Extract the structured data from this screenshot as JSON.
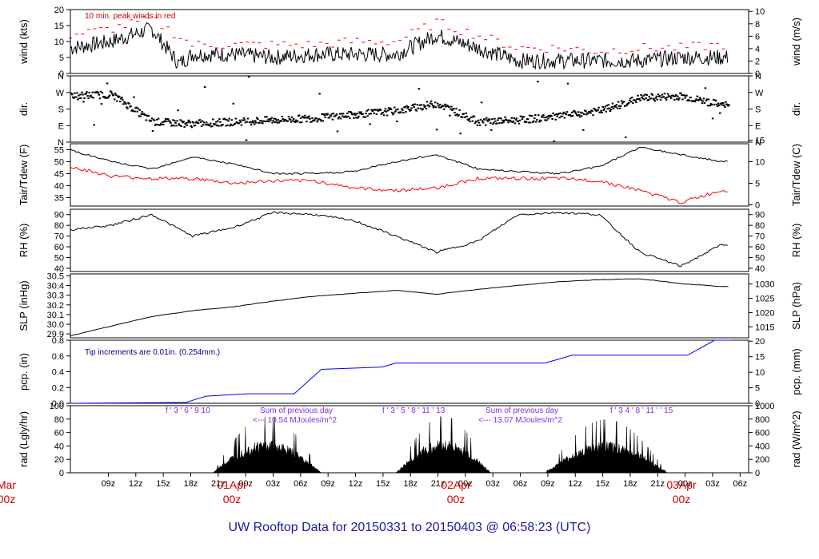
{
  "title": "UW Rooftop Data for 20150331  to  20150403 @ 06:58:23  (UTC)",
  "colors": {
    "axis": "#000000",
    "temp": "#000000",
    "dewpoint": "#ff0000",
    "wind_peak": "#ff0000",
    "precip": "#0000ff",
    "title": "#1a1aa6",
    "date": "#cc0000",
    "note_red": "#cc0000",
    "note_blue": "#00008b",
    "note_purple": "#8a2be2"
  },
  "time_ticks": [
    "09z",
    "12z",
    "15z",
    "18z",
    "21z",
    "00z",
    "03z",
    "06z",
    "09z",
    "12z",
    "15z",
    "18z",
    "21z",
    "00z",
    "03z",
    "06z",
    "09z",
    "12z",
    "15z",
    "18z",
    "21z",
    "00z",
    "03z",
    "06z"
  ],
  "date_labels": [
    {
      "day": "Mar",
      "hour": "00z"
    },
    {
      "day": "01Apr",
      "hour": "00z"
    },
    {
      "day": "02Apr",
      "hour": "00z"
    },
    {
      "day": "03Apr",
      "hour": "00z"
    }
  ],
  "panels": {
    "wind": {
      "left_label": "wind (kts)",
      "right_label": "wind (m/s)",
      "left_ticks": [
        "0",
        "5",
        "10",
        "15",
        "20"
      ],
      "right_ticks": [
        "0",
        "2",
        "4",
        "6",
        "8",
        "10"
      ],
      "note": "10 min. peak winds in red"
    },
    "dir": {
      "left_label": "dir.",
      "right_label": "dir.",
      "ticks": [
        "N",
        "E",
        "S",
        "W",
        "N"
      ]
    },
    "temp": {
      "left_label": "Tair/Tdew (F)",
      "right_label": "Tair/Tdew (C)",
      "left_ticks": [
        "35",
        "40",
        "45",
        "50",
        "55"
      ],
      "right_ticks": [
        "0",
        "5",
        "10",
        "15"
      ]
    },
    "rh": {
      "left_label": "RH (%)",
      "right_label": "RH (%)",
      "ticks": [
        "40",
        "50",
        "60",
        "70",
        "80",
        "90"
      ]
    },
    "slp": {
      "left_label": "SLP (inHg)",
      "right_label": "SLP (hPa)",
      "left_ticks": [
        "29.9",
        "30.0",
        "30.1",
        "30.2",
        "30.3",
        "30.4",
        "30.5"
      ],
      "right_ticks": [
        "1015",
        "1020",
        "1025",
        "1030"
      ]
    },
    "pcp": {
      "left_label": "pcp. (in)",
      "right_label": "pcp. (mm)",
      "left_ticks": [
        "0.0",
        "0.2",
        "0.4",
        "0.6",
        "0.8"
      ],
      "right_ticks": [
        "0",
        "5",
        "10",
        "15",
        "20"
      ],
      "note": "Tip increments are 0.01in. (0.254mm.)"
    },
    "rad": {
      "left_label": "rad (Lgly/hr)",
      "right_label": "rad (W/m^2)",
      "left_ticks": [
        "0",
        "20",
        "40",
        "60",
        "80",
        "100"
      ],
      "right_ticks": [
        "0",
        "200",
        "400",
        "600",
        "800",
        "1000"
      ],
      "sum1_label": "Sum of previous day",
      "sum1_value": "<--- 10.54 MJoules/m^2",
      "sum2_label": "Sum of previous day",
      "sum2_value": "<--- 13.07 MJoules/m^2",
      "hour_marks_1": "f ' 3 ' 6 ' 9   10",
      "hour_marks_2": "f ' 3 ' 5 ' 8 ' 11 '    13",
      "hour_marks_3": "f ' 3  4 ' 8 ' 11 ' ' 15"
    }
  },
  "chart_data": [
    {
      "type": "line",
      "title": "",
      "ylabel": "wind (kts)",
      "ylim": [
        0,
        20
      ],
      "series": [
        {
          "name": "",
          "x_hours": [
            0,
            6,
            12,
            16,
            18,
            24,
            30,
            36,
            42,
            48,
            54,
            60,
            66,
            72,
            78,
            84,
            90,
            96
          ],
          "values": [
            8,
            10,
            14,
            3,
            6,
            6,
            5,
            6,
            6,
            6,
            12,
            8,
            4,
            4,
            4,
            4,
            5,
            5
          ]
        },
        {
          "name": "10 min. peak winds in red",
          "x_hours": [
            0,
            6,
            12,
            18,
            24,
            30,
            36,
            42,
            48,
            54,
            60,
            66,
            72,
            78,
            84,
            90,
            96
          ],
          "values": [
            12,
            14,
            17,
            9,
            9,
            9,
            9,
            10,
            10,
            16,
            12,
            8,
            8,
            7,
            8,
            8,
            9
          ]
        }
      ]
    },
    {
      "type": "scatter",
      "ylabel": "dir.",
      "ytick_labels": [
        "N",
        "E",
        "S",
        "W",
        "N"
      ],
      "series": [
        {
          "name": "",
          "x_hours": [
            0,
            6,
            12,
            18,
            24,
            30,
            36,
            42,
            48,
            54,
            60,
            66,
            72,
            78,
            84,
            90,
            96
          ],
          "values_deg": [
            250,
            260,
            110,
            100,
            110,
            120,
            130,
            150,
            170,
            210,
            110,
            120,
            140,
            170,
            240,
            250,
            200
          ]
        }
      ]
    },
    {
      "type": "line",
      "ylabel": "Tair/Tdew (F)",
      "ylim": [
        30,
        57
      ],
      "series": [
        {
          "name": "",
          "x_hours": [
            0,
            6,
            12,
            18,
            24,
            30,
            36,
            42,
            48,
            54,
            60,
            66,
            72,
            78,
            84,
            90,
            96
          ],
          "values": [
            55,
            50,
            47,
            52,
            49,
            45,
            45,
            46,
            50,
            53,
            47,
            46,
            45,
            48,
            56,
            53,
            50
          ]
        },
        {
          "name": "",
          "x_hours": [
            0,
            6,
            12,
            18,
            24,
            30,
            36,
            42,
            48,
            54,
            60,
            66,
            72,
            78,
            84,
            90,
            96
          ],
          "values": [
            48,
            44,
            43,
            43,
            41,
            42,
            42,
            39,
            38,
            39,
            43,
            43,
            43,
            42,
            38,
            33,
            38
          ]
        }
      ]
    },
    {
      "type": "line",
      "ylabel": "RH (%)",
      "ylim": [
        38,
        95
      ],
      "series": [
        {
          "name": "",
          "x_hours": [
            0,
            6,
            12,
            18,
            24,
            30,
            36,
            42,
            48,
            54,
            60,
            66,
            72,
            78,
            84,
            90,
            96
          ],
          "values": [
            76,
            80,
            90,
            70,
            78,
            92,
            90,
            84,
            70,
            55,
            65,
            90,
            92,
            90,
            55,
            42,
            62
          ]
        }
      ]
    },
    {
      "type": "line",
      "ylabel": "SLP (inHg)",
      "ylim": [
        29.85,
        30.5
      ],
      "series": [
        {
          "name": "",
          "x_hours": [
            0,
            6,
            12,
            18,
            24,
            30,
            36,
            42,
            48,
            54,
            60,
            66,
            72,
            78,
            84,
            90,
            96
          ],
          "values": [
            29.88,
            29.98,
            30.08,
            30.14,
            30.18,
            30.24,
            30.29,
            30.32,
            30.35,
            30.31,
            30.36,
            30.4,
            30.44,
            30.46,
            30.47,
            30.42,
            30.39
          ]
        }
      ]
    },
    {
      "type": "line",
      "ylabel": "pcp. (in)",
      "ylim": [
        0,
        0.8
      ],
      "series": [
        {
          "name": "",
          "x_hours": [
            0,
            17,
            20,
            26,
            33,
            37,
            46,
            48,
            70,
            74,
            91,
            95,
            100
          ],
          "values": [
            0,
            0.01,
            0.09,
            0.12,
            0.12,
            0.43,
            0.46,
            0.51,
            0.51,
            0.61,
            0.61,
            0.8,
            0.8
          ]
        }
      ]
    },
    {
      "type": "area",
      "ylabel": "rad (Lgly/hr)",
      "ylim": [
        0,
        100
      ],
      "series": [
        {
          "name": "",
          "x_hours": [
            20,
            26,
            30,
            34,
            37,
            40,
            44,
            48,
            52,
            56,
            60,
            64,
            68,
            72,
            76,
            80,
            84,
            88
          ],
          "values": [
            0,
            10,
            90,
            45,
            5,
            0,
            0,
            15,
            70,
            50,
            5,
            0,
            0,
            15,
            80,
            50,
            5,
            0
          ]
        }
      ]
    }
  ]
}
